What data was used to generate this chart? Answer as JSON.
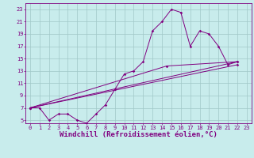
{
  "title": "",
  "xlabel": "Windchill (Refroidissement éolien,°C)",
  "bg_color": "#c8ecec",
  "line_color": "#800080",
  "grid_color": "#a0c8c8",
  "xlim": [
    -0.5,
    23.5
  ],
  "ylim": [
    4.5,
    24
  ],
  "xticks": [
    0,
    1,
    2,
    3,
    4,
    5,
    6,
    7,
    8,
    9,
    10,
    11,
    12,
    13,
    14,
    15,
    16,
    17,
    18,
    19,
    20,
    21,
    22,
    23
  ],
  "yticks": [
    5,
    7,
    9,
    11,
    13,
    15,
    17,
    19,
    21,
    23
  ],
  "line1_x": [
    0,
    1,
    2,
    3,
    4,
    5,
    6,
    7,
    8,
    9,
    10,
    11,
    12,
    13,
    14,
    15,
    16,
    17,
    18,
    19,
    20,
    21,
    22
  ],
  "line1_y": [
    7,
    7,
    5,
    6,
    6,
    5,
    4.5,
    6,
    7.5,
    10,
    12.5,
    13,
    14.5,
    19.5,
    21,
    23,
    22.5,
    17,
    19.5,
    19,
    17,
    14,
    14.5
  ],
  "line2_x": [
    0,
    22
  ],
  "line2_y": [
    7,
    14
  ],
  "line3_x": [
    0,
    22
  ],
  "line3_y": [
    7,
    14.5
  ],
  "line4_x": [
    0,
    14.5,
    22
  ],
  "line4_y": [
    7,
    13.8,
    14.5
  ],
  "ticklabel_fontsize": 5.0,
  "xlabel_fontsize": 6.5
}
